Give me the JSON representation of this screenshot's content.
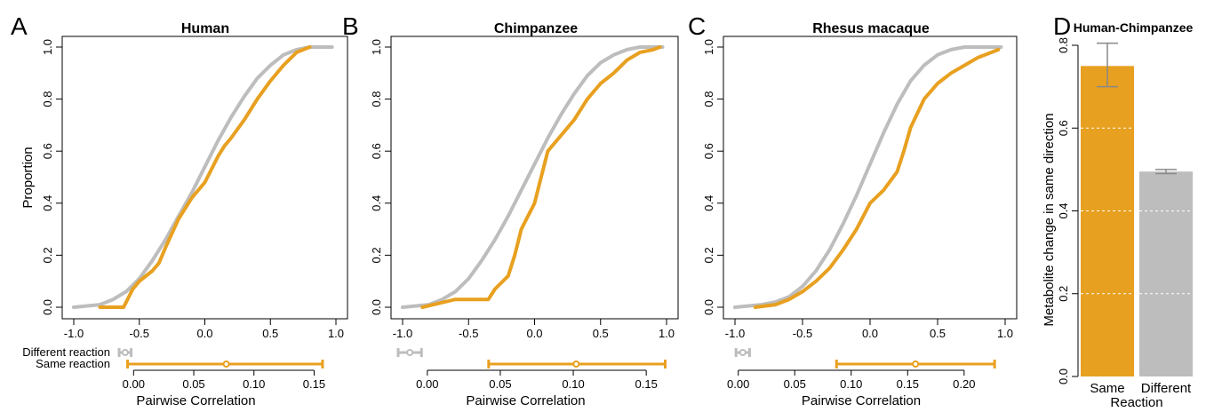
{
  "colors": {
    "same": "#E8A020",
    "different": "#BDBDBD",
    "errorbar": "#888888"
  },
  "chart_data": [
    {
      "letter": "A",
      "type": "line",
      "title": "Human",
      "ylabel": "Proportion",
      "xlim": [
        -1.0,
        1.0
      ],
      "ylim": [
        0.0,
        1.0
      ],
      "xticks": [
        "-1.0",
        "-0.5",
        "0.0",
        "0.5",
        "1.0"
      ],
      "yticks": [
        "0.0",
        "0.2",
        "0.4",
        "0.6",
        "0.8",
        "1.0"
      ],
      "series": [
        {
          "key": "different",
          "x": [
            -1.0,
            -0.8,
            -0.7,
            -0.6,
            -0.5,
            -0.4,
            -0.3,
            -0.2,
            -0.1,
            0.0,
            0.1,
            0.2,
            0.3,
            0.4,
            0.5,
            0.6,
            0.7,
            0.8,
            0.9,
            0.97
          ],
          "y": [
            0.0,
            0.01,
            0.03,
            0.06,
            0.11,
            0.18,
            0.26,
            0.35,
            0.44,
            0.54,
            0.64,
            0.73,
            0.81,
            0.88,
            0.93,
            0.97,
            0.99,
            1.0,
            1.0,
            1.0
          ]
        },
        {
          "key": "same",
          "x": [
            -0.8,
            -0.62,
            -0.55,
            -0.5,
            -0.4,
            -0.35,
            -0.3,
            -0.2,
            -0.1,
            0.0,
            0.1,
            0.15,
            0.2,
            0.3,
            0.4,
            0.5,
            0.6,
            0.7,
            0.8
          ],
          "y": [
            0.0,
            0.0,
            0.07,
            0.1,
            0.14,
            0.17,
            0.23,
            0.34,
            0.42,
            0.48,
            0.58,
            0.62,
            0.65,
            0.72,
            0.8,
            0.87,
            0.93,
            0.98,
            1.0
          ]
        }
      ],
      "range": {
        "xticks": [
          "0.00",
          "0.05",
          "0.10",
          "0.15"
        ],
        "xlim": [
          -0.015,
          0.16
        ],
        "xlabel": "Pairwise Correlation",
        "labels": {
          "different": "Different reaction",
          "same": "Same reaction"
        },
        "different": {
          "low": -0.012,
          "mid": -0.007,
          "high": -0.002
        },
        "same": {
          "low": -0.005,
          "mid": 0.077,
          "high": 0.157
        }
      }
    },
    {
      "letter": "B",
      "type": "line",
      "title": "Chimpanzee",
      "ylabel": "",
      "xlim": [
        -1.0,
        1.0
      ],
      "ylim": [
        0.0,
        1.0
      ],
      "xticks": [
        "-1.0",
        "-0.5",
        "0.0",
        "0.5",
        "1.0"
      ],
      "yticks": [
        "0.0",
        "0.2",
        "0.4",
        "0.6",
        "0.8",
        "1.0"
      ],
      "series": [
        {
          "key": "different",
          "x": [
            -1.0,
            -0.8,
            -0.7,
            -0.6,
            -0.5,
            -0.4,
            -0.3,
            -0.2,
            -0.1,
            0.0,
            0.1,
            0.2,
            0.3,
            0.4,
            0.5,
            0.6,
            0.7,
            0.8,
            0.9,
            0.97
          ],
          "y": [
            0.0,
            0.01,
            0.03,
            0.06,
            0.11,
            0.18,
            0.26,
            0.35,
            0.45,
            0.55,
            0.65,
            0.74,
            0.82,
            0.89,
            0.94,
            0.97,
            0.99,
            1.0,
            1.0,
            1.0
          ]
        },
        {
          "key": "same",
          "x": [
            -0.85,
            -0.6,
            -0.35,
            -0.3,
            -0.2,
            -0.15,
            -0.1,
            0.0,
            0.05,
            0.1,
            0.2,
            0.3,
            0.4,
            0.5,
            0.6,
            0.7,
            0.8,
            0.9,
            0.95
          ],
          "y": [
            0.0,
            0.03,
            0.03,
            0.07,
            0.12,
            0.2,
            0.3,
            0.4,
            0.5,
            0.6,
            0.66,
            0.72,
            0.8,
            0.86,
            0.9,
            0.95,
            0.98,
            0.99,
            1.0
          ]
        }
      ],
      "range": {
        "xticks": [
          "0.00",
          "0.05",
          "0.10",
          "0.15"
        ],
        "xlim": [
          -0.02,
          0.17
        ],
        "xlabel": "Pairwise Correlation",
        "labels": {
          "different": "",
          "same": ""
        },
        "different": {
          "low": -0.02,
          "mid": -0.012,
          "high": -0.004
        },
        "same": {
          "low": 0.042,
          "mid": 0.102,
          "high": 0.163
        }
      }
    },
    {
      "letter": "C",
      "type": "line",
      "title": "Rhesus macaque",
      "ylabel": "",
      "xlim": [
        -1.0,
        1.0
      ],
      "ylim": [
        0.0,
        1.0
      ],
      "xticks": [
        "-1.0",
        "-0.5",
        "0.0",
        "0.5",
        "1.0"
      ],
      "yticks": [
        "0.0",
        "0.2",
        "0.4",
        "0.6",
        "0.8",
        "1.0"
      ],
      "series": [
        {
          "key": "different",
          "x": [
            -1.0,
            -0.8,
            -0.7,
            -0.6,
            -0.5,
            -0.4,
            -0.3,
            -0.2,
            -0.1,
            0.0,
            0.1,
            0.2,
            0.3,
            0.4,
            0.5,
            0.6,
            0.7,
            0.8,
            0.9,
            0.97
          ],
          "y": [
            0.0,
            0.01,
            0.02,
            0.04,
            0.08,
            0.14,
            0.22,
            0.32,
            0.43,
            0.55,
            0.67,
            0.78,
            0.87,
            0.93,
            0.97,
            0.99,
            1.0,
            1.0,
            1.0,
            1.0
          ]
        },
        {
          "key": "same",
          "x": [
            -0.85,
            -0.7,
            -0.6,
            -0.5,
            -0.4,
            -0.3,
            -0.2,
            -0.1,
            0.0,
            0.1,
            0.2,
            0.25,
            0.3,
            0.4,
            0.5,
            0.6,
            0.7,
            0.8,
            0.9,
            0.95
          ],
          "y": [
            0.0,
            0.01,
            0.03,
            0.06,
            0.1,
            0.15,
            0.22,
            0.3,
            0.4,
            0.45,
            0.52,
            0.6,
            0.69,
            0.8,
            0.86,
            0.9,
            0.93,
            0.96,
            0.98,
            0.99
          ]
        }
      ],
      "range": {
        "xticks": [
          "0.00",
          "0.05",
          "0.10",
          "0.15",
          "0.20"
        ],
        "xlim": [
          -0.01,
          0.245
        ],
        "xlabel": "Pairwise Correlation",
        "labels": {
          "different": "",
          "same": ""
        },
        "different": {
          "low": -0.002,
          "mid": 0.004,
          "high": 0.01
        },
        "same": {
          "low": 0.087,
          "mid": 0.157,
          "high": 0.227
        }
      }
    },
    {
      "letter": "D",
      "type": "bar",
      "title": "Human-Chimpanzee",
      "ylabel": "Metabolite change in same direction",
      "xlabel": "Reaction",
      "ylim": [
        0.0,
        0.8
      ],
      "yticks": [
        "0.0",
        "0.2",
        "0.4",
        "0.6",
        "0.8"
      ],
      "categories": [
        "Same",
        "Different"
      ],
      "values": [
        0.75,
        0.495
      ],
      "errors_low": [
        0.7,
        0.49
      ],
      "errors_high": [
        0.805,
        0.5
      ]
    }
  ]
}
